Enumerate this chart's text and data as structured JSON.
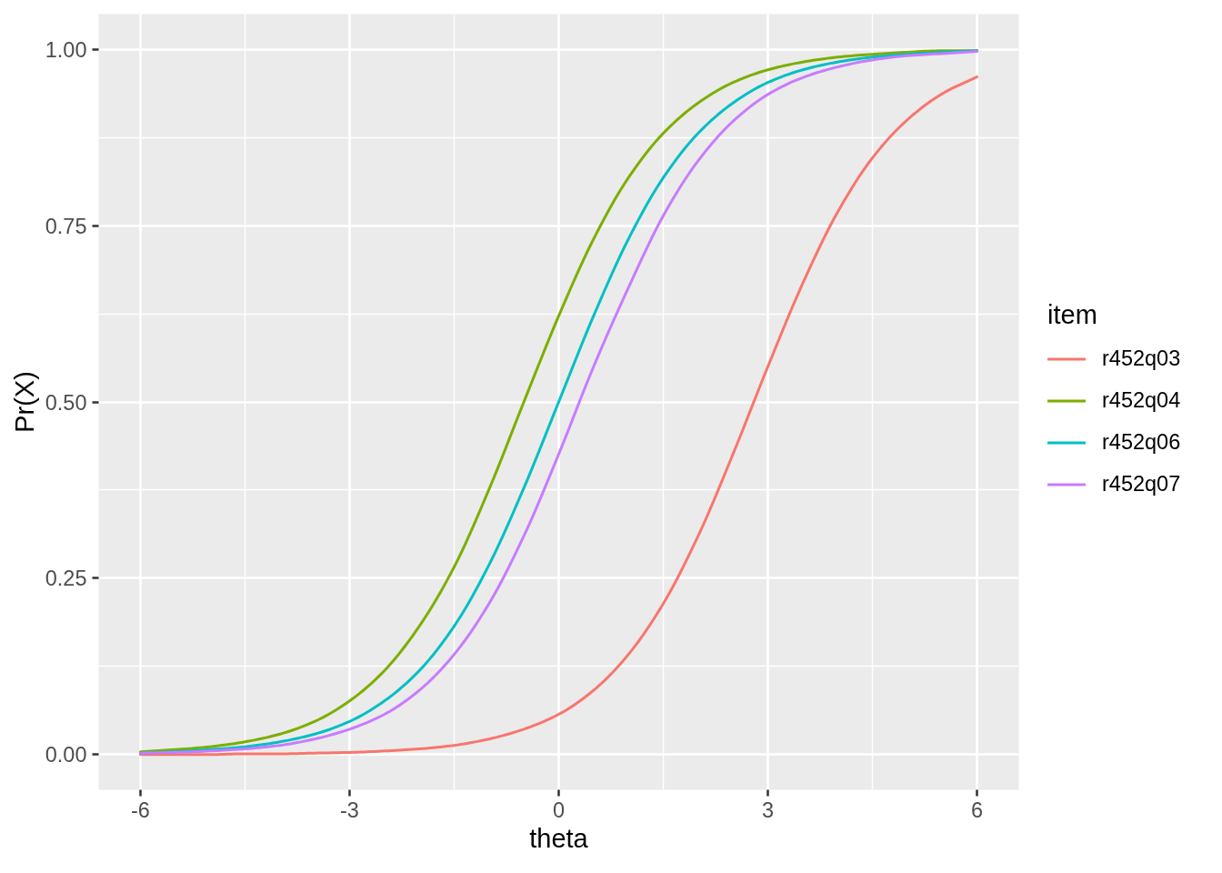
{
  "chart_data": {
    "type": "line",
    "xlabel": "theta",
    "ylabel": "Pr(X)",
    "legend_title": "item",
    "legend": "right",
    "grid": true,
    "xlim": [
      -6.6,
      6.6
    ],
    "ylim": [
      -0.05,
      1.05
    ],
    "xticks": [
      -6,
      -3,
      0,
      3,
      6
    ],
    "yticks": [
      {
        "value": 0,
        "label": "0.00"
      },
      0.25,
      {
        "value": 0.5,
        "label": "0.50"
      },
      0.75,
      {
        "value": 1,
        "label": "1.00"
      }
    ],
    "x": [
      -6,
      -5.5,
      -5,
      -4.5,
      -4,
      -3.5,
      -3,
      -2.5,
      -2,
      -1.5,
      -1,
      -0.5,
      0,
      0.5,
      1,
      1.5,
      2,
      2.5,
      3,
      3.5,
      4,
      4.5,
      5,
      5.5,
      6
    ],
    "series": [
      {
        "name": "r452q03",
        "color": "#f8766d",
        "values": [
          0,
          0,
          0,
          0.001,
          0.001,
          0.002,
          0.003,
          0.005,
          0.008,
          0.013,
          0.022,
          0.036,
          0.057,
          0.091,
          0.142,
          0.214,
          0.31,
          0.426,
          0.55,
          0.668,
          0.769,
          0.846,
          0.9,
          0.937,
          0.961
        ]
      },
      {
        "name": "r452q04",
        "color": "#7cae00",
        "values": [
          0.004,
          0.007,
          0.011,
          0.018,
          0.029,
          0.047,
          0.076,
          0.119,
          0.182,
          0.266,
          0.376,
          0.5,
          0.622,
          0.731,
          0.818,
          0.881,
          0.924,
          0.953,
          0.971,
          0.982,
          0.989,
          0.993,
          0.996,
          0.998,
          0.998
        ]
      },
      {
        "name": "r452q06",
        "color": "#00bfc4",
        "values": [
          0.002,
          0.004,
          0.007,
          0.011,
          0.018,
          0.029,
          0.047,
          0.076,
          0.119,
          0.182,
          0.269,
          0.378,
          0.5,
          0.622,
          0.731,
          0.818,
          0.881,
          0.924,
          0.953,
          0.971,
          0.982,
          0.989,
          0.993,
          0.996,
          0.998
        ]
      },
      {
        "name": "r452q07",
        "color": "#c77cff",
        "values": [
          0.002,
          0.003,
          0.005,
          0.008,
          0.013,
          0.022,
          0.036,
          0.057,
          0.091,
          0.142,
          0.214,
          0.31,
          0.426,
          0.55,
          0.662,
          0.764,
          0.842,
          0.898,
          0.936,
          0.96,
          0.975,
          0.985,
          0.991,
          0.994,
          0.997
        ]
      }
    ]
  }
}
